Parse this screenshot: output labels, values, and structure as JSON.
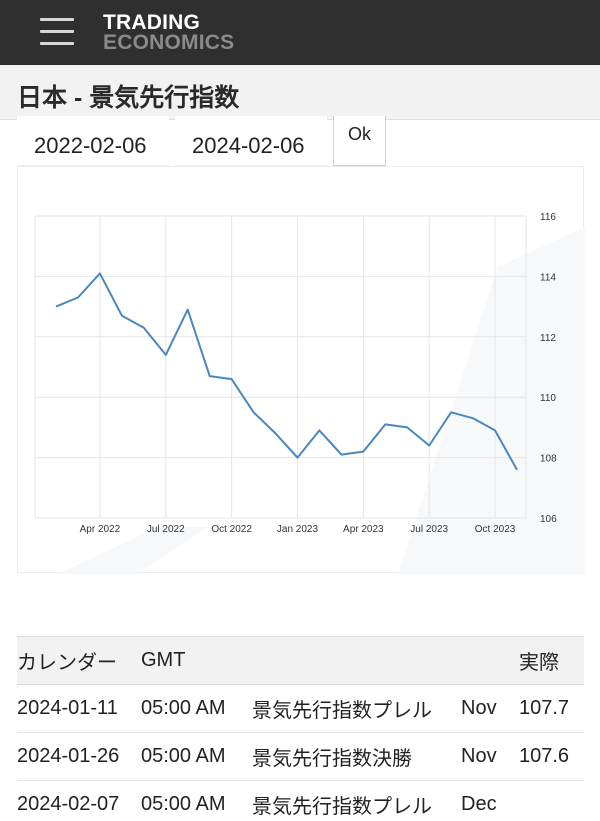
{
  "header": {
    "logo_line1": "TRADING",
    "logo_line2": "ECONOMICS",
    "menu_icon": "hamburger-menu-icon"
  },
  "page": {
    "title": "日本 - 景気先行指数"
  },
  "date_range": {
    "start": "2022-02-06",
    "end": "2024-02-06",
    "ok_label": "Ok"
  },
  "chart_data": {
    "type": "line",
    "title": "",
    "xlabel": "",
    "ylabel": "",
    "ylim": [
      106,
      116
    ],
    "yticks": [
      "116",
      "114",
      "112",
      "110",
      "108",
      "106"
    ],
    "xticks": [
      "Apr 2022",
      "Jul 2022",
      "Oct 2022",
      "Jan 2023",
      "Apr 2023",
      "Jul 2023",
      "Oct 2023"
    ],
    "grid": true,
    "line_color": "#4a87c0",
    "series": [
      {
        "x": [
          "2022-02",
          "2022-03",
          "2022-04",
          "2022-05",
          "2022-06",
          "2022-07",
          "2022-08",
          "2022-09",
          "2022-10",
          "2022-11",
          "2022-12",
          "2023-01",
          "2023-02",
          "2023-03",
          "2023-04",
          "2023-05",
          "2023-06",
          "2023-07",
          "2023-08",
          "2023-09",
          "2023-10",
          "2023-11"
        ],
        "values": [
          113.0,
          113.3,
          114.1,
          112.7,
          112.3,
          111.4,
          112.9,
          110.7,
          110.6,
          109.5,
          108.8,
          108.0,
          108.9,
          108.1,
          108.2,
          109.1,
          109.0,
          108.4,
          109.5,
          109.3,
          108.9,
          107.6
        ]
      }
    ]
  },
  "calendar": {
    "headers": {
      "date": "カレンダー",
      "time": "GMT",
      "event": "",
      "reference": "",
      "actual": "実際"
    },
    "rows": [
      {
        "date": "2024-01-11",
        "time": "05:00 AM",
        "event": "景気先行指数プレル",
        "reference": "Nov",
        "actual": "107.7"
      },
      {
        "date": "2024-01-26",
        "time": "05:00 AM",
        "event": "景気先行指数決勝",
        "reference": "Nov",
        "actual": "107.6"
      },
      {
        "date": "2024-02-07",
        "time": "05:00 AM",
        "event": "景気先行指数プレル",
        "reference": "Dec",
        "actual": ""
      }
    ]
  }
}
